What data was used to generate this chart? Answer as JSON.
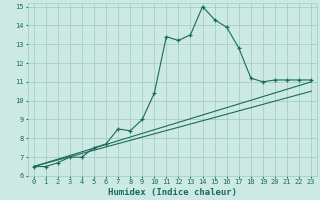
{
  "xlabel": "Humidex (Indice chaleur)",
  "background_color": "#cce9e4",
  "grid_color": "#99ccc4",
  "line_color": "#1a6b5a",
  "xlim_min": -0.5,
  "xlim_max": 23.5,
  "ylim_min": 6,
  "ylim_max": 15.2,
  "yticks": [
    6,
    7,
    8,
    9,
    10,
    11,
    12,
    13,
    14,
    15
  ],
  "xticks": [
    0,
    1,
    2,
    3,
    4,
    5,
    6,
    7,
    8,
    9,
    10,
    11,
    12,
    13,
    14,
    15,
    16,
    17,
    18,
    19,
    20,
    21,
    22,
    23
  ],
  "line1_x": [
    0,
    1,
    2,
    3,
    4,
    5,
    6,
    7,
    8,
    9,
    10,
    11,
    12,
    13,
    14,
    15,
    16,
    17,
    18,
    19,
    20,
    21,
    22,
    23
  ],
  "line1_y": [
    6.5,
    6.5,
    6.7,
    7.0,
    7.0,
    7.5,
    7.7,
    8.5,
    8.4,
    9.0,
    10.4,
    13.4,
    13.2,
    13.5,
    15.0,
    14.3,
    13.9,
    12.8,
    11.2,
    11.0,
    11.1,
    11.1,
    11.1,
    11.1
  ],
  "line2_x": [
    0,
    23
  ],
  "line2_y": [
    6.5,
    11.0
  ],
  "line3_x": [
    0,
    23
  ],
  "line3_y": [
    6.5,
    10.5
  ],
  "xlabel_fontsize": 6.5,
  "tick_fontsize": 5.0,
  "line_width": 0.8,
  "marker_size": 3.0
}
